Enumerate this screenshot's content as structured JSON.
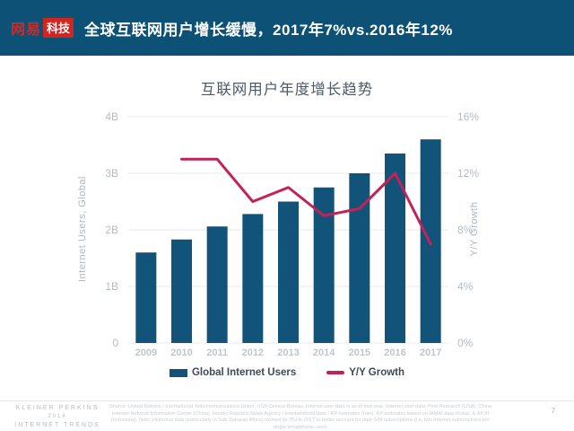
{
  "header": {
    "logo_text": "网易",
    "logo_badge": "科技",
    "title": "全球互联网用户增长缓慢，2017年7%vs.2016年12%"
  },
  "chart_data": {
    "type": "bar",
    "title": "互联网用户年度增长趋势",
    "categories": [
      "2009",
      "2010",
      "2011",
      "2012",
      "2013",
      "2014",
      "2015",
      "2016",
      "2017"
    ],
    "series": [
      {
        "name": "Global Internet Users",
        "type": "bar",
        "axis": "left",
        "unit": "B",
        "values": [
          1.6,
          1.83,
          2.06,
          2.28,
          2.5,
          2.75,
          3.0,
          3.35,
          3.6
        ]
      },
      {
        "name": "Y/Y Growth",
        "type": "line",
        "axis": "right",
        "unit": "%",
        "values": [
          null,
          13,
          13,
          10,
          11,
          9,
          9.5,
          12,
          7
        ]
      }
    ],
    "left_axis": {
      "label": "Internet Users, Global",
      "ticks": [
        "0",
        "1B",
        "2B",
        "3B",
        "4B"
      ],
      "min": 0,
      "max": 4
    },
    "right_axis": {
      "label": "Y/Y Growth",
      "ticks": [
        "0%",
        "4%",
        "8%",
        "12%",
        "16%"
      ],
      "min": 0,
      "max": 16
    },
    "legend_position": "bottom",
    "grid": true,
    "colors": {
      "bar": "#12537a",
      "line": "#c42257"
    }
  },
  "footer": {
    "brand_line1": "KLEINER PERKINS",
    "brand_line2": "2018",
    "brand_line3": "INTERNET TRENDS",
    "source": "Source: United Nations / International Telecommunications Union, USA Census Bureau. Internet user data is as of mid-year. Internet user data: Pew Research (USA), China Internet Network Information Center (China), Islamic Republic News Agency / InternetWorldStats / KP estimates (Iran). KP estimates based on IAMAI data (India), & APJII (Indonesia). Note: Historical data (particularly in Sub-Saharan Africa) revised by ITU in 2017 to better account for dual-SIM subscriptions (i.e. two Internet subscriptions per single smartphone user).",
    "page_number": "7"
  }
}
